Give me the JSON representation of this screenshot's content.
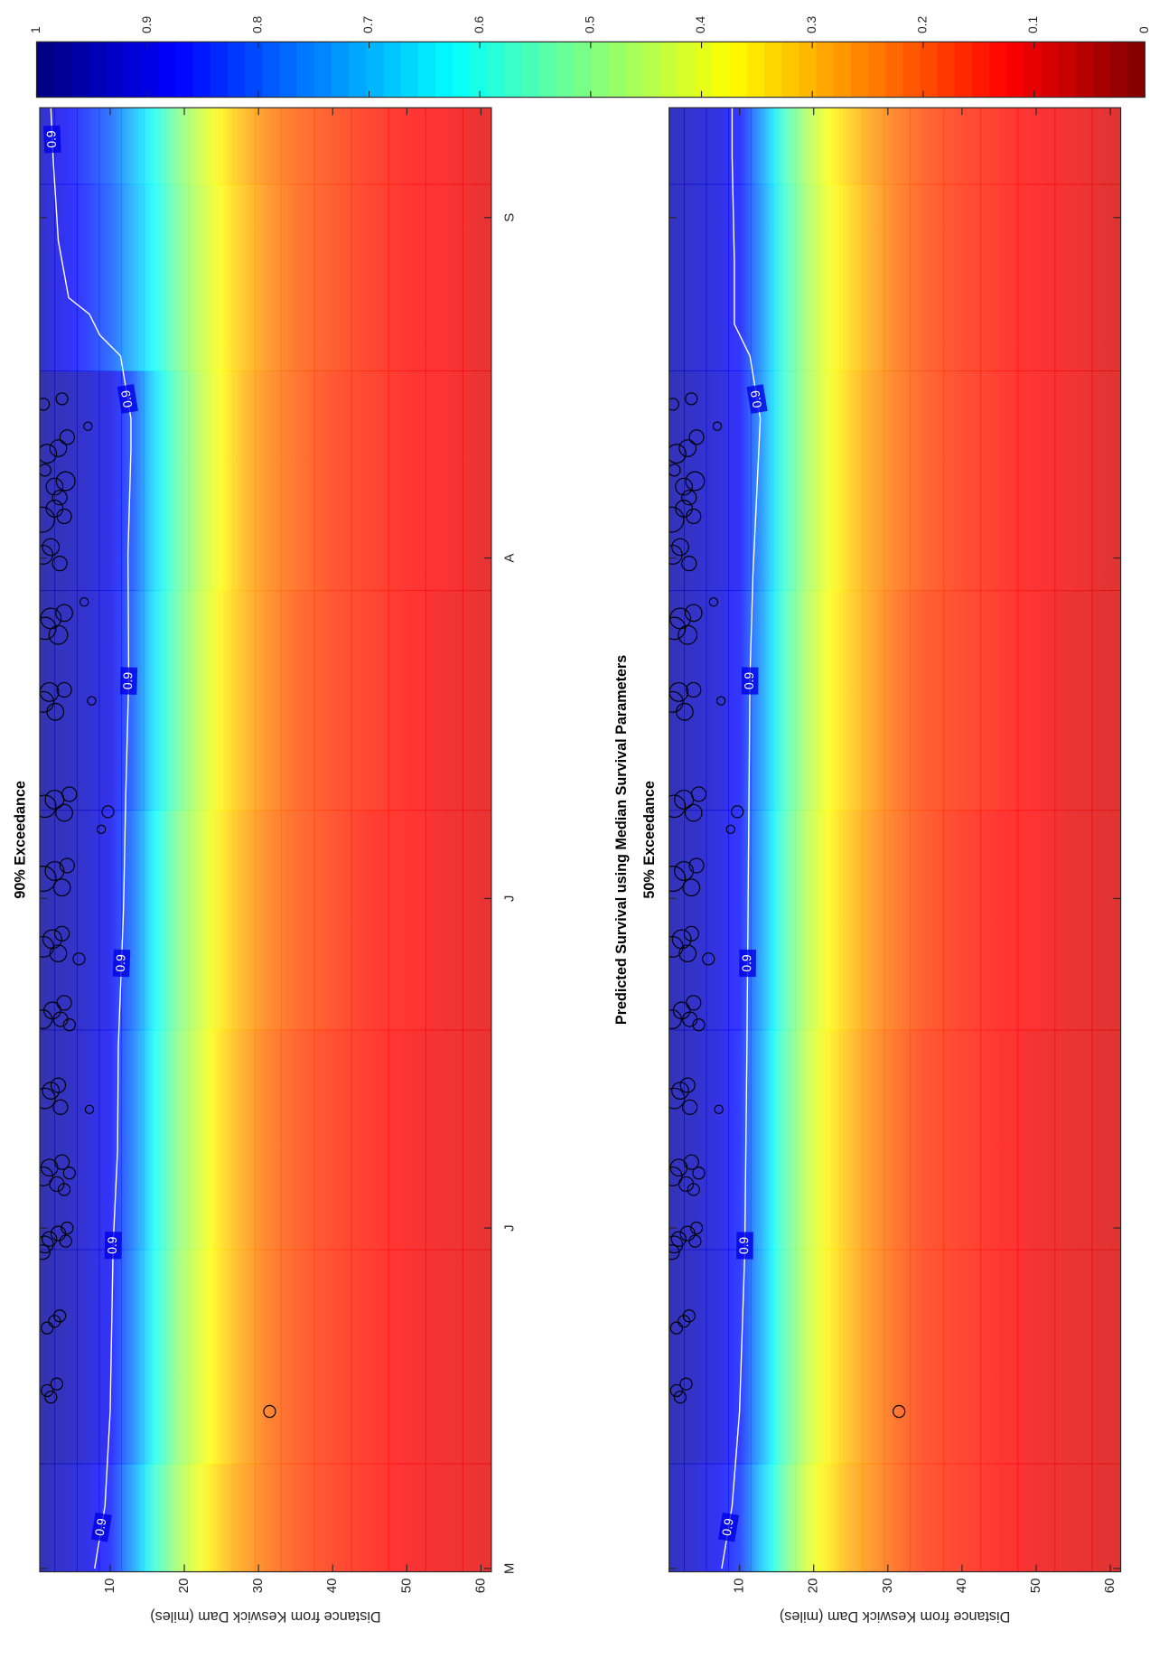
{
  "chart_data": [
    {
      "type": "contour",
      "subtitle": "90% Exceedance",
      "ylabel": "Distance from Keswick Dam (miles)",
      "xlim": [
        120.7,
        254
      ],
      "ylim": [
        0.5,
        61.4
      ],
      "xticks": [
        {
          "value": 121,
          "label": "M"
        },
        {
          "value": 152,
          "label": "J"
        },
        {
          "value": 182,
          "label": "J"
        },
        {
          "value": 213,
          "label": "A"
        },
        {
          "value": 244,
          "label": "S"
        }
      ],
      "yticks": [
        10,
        20,
        30,
        40,
        50,
        60
      ],
      "grid_x": [
        121,
        140,
        160,
        180,
        200,
        220,
        240,
        254
      ],
      "grid_y": [
        1,
        4,
        7,
        10,
        13,
        16,
        19,
        22,
        25,
        28,
        31,
        35,
        40,
        45,
        50,
        55,
        60
      ],
      "z": [
        [
          0.96,
          0.97,
          0.97,
          0.97,
          0.97,
          0.97,
          0.93,
          0.93
        ],
        [
          0.93,
          0.95,
          0.95,
          0.95,
          0.95,
          0.95,
          0.89,
          0.88
        ],
        [
          0.9,
          0.92,
          0.92,
          0.93,
          0.93,
          0.93,
          0.85,
          0.84
        ],
        [
          0.86,
          0.88,
          0.88,
          0.89,
          0.9,
          0.9,
          0.8,
          0.79
        ],
        [
          0.73,
          0.76,
          0.77,
          0.78,
          0.8,
          0.81,
          0.71,
          0.7
        ],
        [
          0.58,
          0.61,
          0.62,
          0.63,
          0.65,
          0.66,
          0.62,
          0.61
        ],
        [
          0.47,
          0.49,
          0.5,
          0.51,
          0.53,
          0.54,
          0.52,
          0.51
        ],
        [
          0.39,
          0.41,
          0.42,
          0.43,
          0.44,
          0.45,
          0.44,
          0.43
        ],
        [
          0.32,
          0.34,
          0.34,
          0.35,
          0.36,
          0.37,
          0.37,
          0.36
        ],
        [
          0.27,
          0.28,
          0.28,
          0.29,
          0.3,
          0.3,
          0.31,
          0.3
        ],
        [
          0.23,
          0.23,
          0.23,
          0.24,
          0.25,
          0.25,
          0.26,
          0.25
        ],
        [
          0.19,
          0.19,
          0.19,
          0.2,
          0.2,
          0.21,
          0.21,
          0.21
        ],
        [
          0.16,
          0.16,
          0.16,
          0.17,
          0.17,
          0.17,
          0.18,
          0.18
        ],
        [
          0.14,
          0.14,
          0.14,
          0.14,
          0.15,
          0.15,
          0.15,
          0.15
        ],
        [
          0.12,
          0.12,
          0.12,
          0.13,
          0.13,
          0.13,
          0.13,
          0.13
        ],
        [
          0.11,
          0.11,
          0.11,
          0.11,
          0.11,
          0.12,
          0.12,
          0.12
        ],
        [
          0.1,
          0.1,
          0.1,
          0.1,
          0.1,
          0.1,
          0.1,
          0.1
        ]
      ],
      "contour_lines": [
        {
          "level": 0.9,
          "x": [
            121,
            126.7,
            135.3,
            150.5,
            159.1,
            168.6,
            181,
            191.4,
            201.9,
            213.3,
            222.9,
            225.7,
            231.4,
            233.3,
            235.2,
            236.7,
            241.9,
            249.5,
            254
          ],
          "y": [
            7.9,
            9.3,
            10,
            10.4,
            11,
            11.1,
            11.8,
            12.1,
            12.5,
            12.4,
            12.8,
            12.8,
            11.4,
            8.6,
            7.2,
            4.4,
            3,
            2.3,
            2
          ]
        }
      ],
      "scatter": {
        "x": [
          137.2,
          137.8,
          136.6,
          142.9,
          143.5,
          144,
          150.5,
          151,
          151.5,
          150.8,
          152,
          149.8,
          156.7,
          157.5,
          156,
          158,
          157,
          155.5,
          163.8,
          164.5,
          163,
          165,
          162.8,
          171,
          171.8,
          171,
          172.5,
          170.5,
          177.6,
          178.3,
          177,
          178.8,
          176.5,
          183.8,
          184.5,
          183,
          185,
          190.4,
          191,
          189.8,
          191.5,
          189.9,
          188.3,
          199.9,
          200.8,
          199,
          201,
          200,
          206.6,
          207.5,
          206,
          208,
          209,
          213.3,
          214,
          212.5,
          216.5,
          217.5,
          216.8,
          218.5,
          219.5,
          220,
          221,
          222.5,
          223,
          224,
          225,
          227,
          227.5,
          135.3
        ],
        "y": [
          1.5,
          2.8,
          2.0,
          1.5,
          2.5,
          3.2,
          1.2,
          1.8,
          3.0,
          4.0,
          4.2,
          0.9,
          1.0,
          1.8,
          2.8,
          3.5,
          4.5,
          3.8,
          1.2,
          2.0,
          3.3,
          3.0,
          7.2,
          0.9,
          2.2,
          3.3,
          3.8,
          4.5,
          1.0,
          2.2,
          3.0,
          3.5,
          5.8,
          1.0,
          2.5,
          3.5,
          4.2,
          1.2,
          2.5,
          3.8,
          4.5,
          9.7,
          8.8,
          1.0,
          1.8,
          2.6,
          3.8,
          7.5,
          1.2,
          2.0,
          3.0,
          3.8,
          6.5,
          1.0,
          2.0,
          3.2,
          0.8,
          2.5,
          3.8,
          3.2,
          2.5,
          4.0,
          1.2,
          1.5,
          3.0,
          4.2,
          7.0,
          1.0,
          3.5,
          31.5
        ],
        "sizes": [
          2,
          2,
          2,
          2,
          2,
          2,
          4,
          3,
          3,
          2,
          2,
          3,
          5,
          4,
          3,
          3,
          2,
          2,
          6,
          4,
          3,
          3,
          1,
          5,
          4,
          3,
          3,
          2,
          6,
          5,
          4,
          3,
          2,
          9,
          5,
          4,
          3,
          7,
          5,
          4,
          3,
          2,
          1,
          6,
          5,
          4,
          3,
          1,
          7,
          6,
          5,
          4,
          1,
          5,
          4,
          3,
          9,
          4,
          3,
          3,
          4,
          5,
          2,
          5,
          4,
          3,
          1,
          2,
          2,
          2
        ]
      }
    },
    {
      "type": "contour",
      "title": "Predicted Survival using Median Survival Parameters",
      "subtitle": "50% Exceedance",
      "ylabel": "Distance from Keswick Dam (miles)",
      "xlim": [
        120.7,
        254
      ],
      "ylim": [
        0.5,
        61.4
      ],
      "xticks": [
        121,
        152,
        182,
        213,
        244
      ],
      "yticks": [
        10,
        20,
        30,
        40,
        50,
        60
      ],
      "grid_x": [
        121,
        140,
        160,
        180,
        200,
        220,
        240,
        254
      ],
      "grid_y": [
        1,
        4,
        7,
        10,
        13,
        16,
        19,
        22,
        25,
        28,
        31,
        35,
        40,
        45,
        50,
        55,
        60
      ],
      "z": [
        [
          0.95,
          0.96,
          0.96,
          0.96,
          0.96,
          0.96,
          0.95,
          0.95
        ],
        [
          0.92,
          0.94,
          0.94,
          0.94,
          0.94,
          0.94,
          0.93,
          0.93
        ],
        [
          0.89,
          0.91,
          0.91,
          0.91,
          0.92,
          0.92,
          0.91,
          0.91
        ],
        [
          0.84,
          0.86,
          0.86,
          0.87,
          0.87,
          0.88,
          0.87,
          0.87
        ],
        [
          0.68,
          0.71,
          0.71,
          0.72,
          0.73,
          0.74,
          0.74,
          0.73
        ],
        [
          0.53,
          0.55,
          0.55,
          0.56,
          0.57,
          0.58,
          0.58,
          0.57
        ],
        [
          0.42,
          0.44,
          0.44,
          0.45,
          0.46,
          0.47,
          0.47,
          0.46
        ],
        [
          0.35,
          0.36,
          0.36,
          0.37,
          0.38,
          0.39,
          0.39,
          0.38
        ],
        [
          0.29,
          0.3,
          0.3,
          0.31,
          0.32,
          0.32,
          0.33,
          0.32
        ],
        [
          0.25,
          0.25,
          0.25,
          0.26,
          0.27,
          0.27,
          0.28,
          0.27
        ],
        [
          0.21,
          0.21,
          0.21,
          0.22,
          0.22,
          0.23,
          0.23,
          0.23
        ],
        [
          0.17,
          0.17,
          0.17,
          0.18,
          0.18,
          0.19,
          0.19,
          0.19
        ],
        [
          0.15,
          0.15,
          0.15,
          0.15,
          0.16,
          0.16,
          0.16,
          0.16
        ],
        [
          0.13,
          0.13,
          0.13,
          0.13,
          0.14,
          0.14,
          0.14,
          0.14
        ],
        [
          0.11,
          0.11,
          0.11,
          0.12,
          0.12,
          0.12,
          0.12,
          0.12
        ],
        [
          0.1,
          0.1,
          0.1,
          0.1,
          0.1,
          0.11,
          0.11,
          0.11
        ],
        [
          0.09,
          0.09,
          0.09,
          0.09,
          0.09,
          0.09,
          0.09,
          0.09
        ]
      ],
      "contour_lines": [
        {
          "level": 0.9,
          "x": [
            121,
            126.7,
            135.3,
            149.6,
            168.6,
            201.9,
            211.4,
            225.7,
            231.4,
            234.3,
            240,
            249.5,
            254
          ],
          "y": [
            7.6,
            9,
            10,
            10.7,
            11,
            11.4,
            11.8,
            12.8,
            11.4,
            9.3,
            9.3,
            9,
            9
          ]
        }
      ],
      "scatter": {
        "x": [
          137.2,
          137.8,
          136.6,
          142.9,
          143.5,
          144,
          150.5,
          151,
          151.5,
          150.8,
          152,
          149.8,
          156.7,
          157.5,
          156,
          158,
          157,
          155.5,
          163.8,
          164.5,
          163,
          165,
          162.8,
          171,
          171.8,
          171,
          172.5,
          170.5,
          177.6,
          178.3,
          177,
          178.8,
          176.5,
          183.8,
          184.5,
          183,
          185,
          190.4,
          191,
          189.8,
          191.5,
          189.9,
          188.3,
          199.9,
          200.8,
          199,
          201,
          200,
          206.6,
          207.5,
          206,
          208,
          209,
          213.3,
          214,
          212.5,
          216.5,
          217.5,
          216.8,
          218.5,
          219.5,
          220,
          221,
          222.5,
          223,
          224,
          225,
          227,
          227.5,
          135.3
        ],
        "y": [
          1.5,
          2.8,
          2.0,
          1.5,
          2.5,
          3.2,
          1.2,
          1.8,
          3.0,
          4.0,
          4.2,
          0.9,
          1.0,
          1.8,
          2.8,
          3.5,
          4.5,
          3.8,
          1.2,
          2.0,
          3.3,
          3.0,
          7.2,
          0.9,
          2.2,
          3.3,
          3.8,
          4.5,
          1.0,
          2.2,
          3.0,
          3.5,
          5.8,
          1.0,
          2.5,
          3.5,
          4.2,
          1.2,
          2.5,
          3.8,
          4.5,
          9.7,
          8.8,
          1.0,
          1.8,
          2.6,
          3.8,
          7.5,
          1.2,
          2.0,
          3.0,
          3.8,
          6.5,
          1.0,
          2.0,
          3.2,
          0.8,
          2.5,
          3.8,
          3.2,
          2.5,
          4.0,
          1.2,
          1.5,
          3.0,
          4.2,
          7.0,
          1.0,
          3.5,
          31.5
        ],
        "sizes": [
          2,
          2,
          2,
          2,
          2,
          2,
          4,
          3,
          3,
          2,
          2,
          3,
          5,
          4,
          3,
          3,
          2,
          2,
          6,
          4,
          3,
          3,
          1,
          5,
          4,
          3,
          3,
          2,
          6,
          5,
          4,
          3,
          2,
          9,
          5,
          4,
          3,
          7,
          5,
          4,
          3,
          2,
          1,
          6,
          5,
          4,
          3,
          1,
          7,
          6,
          5,
          4,
          1,
          5,
          4,
          3,
          9,
          4,
          3,
          3,
          4,
          5,
          2,
          5,
          4,
          3,
          1,
          2,
          2,
          2
        ]
      }
    },
    {
      "type": "colorbar",
      "colormap": "jet",
      "reversed": true,
      "clim": [
        0,
        1
      ],
      "ticks": [
        0,
        0.1,
        0.2,
        0.3,
        0.4,
        0.5,
        0.6,
        0.7,
        0.8,
        0.9,
        1
      ]
    }
  ]
}
